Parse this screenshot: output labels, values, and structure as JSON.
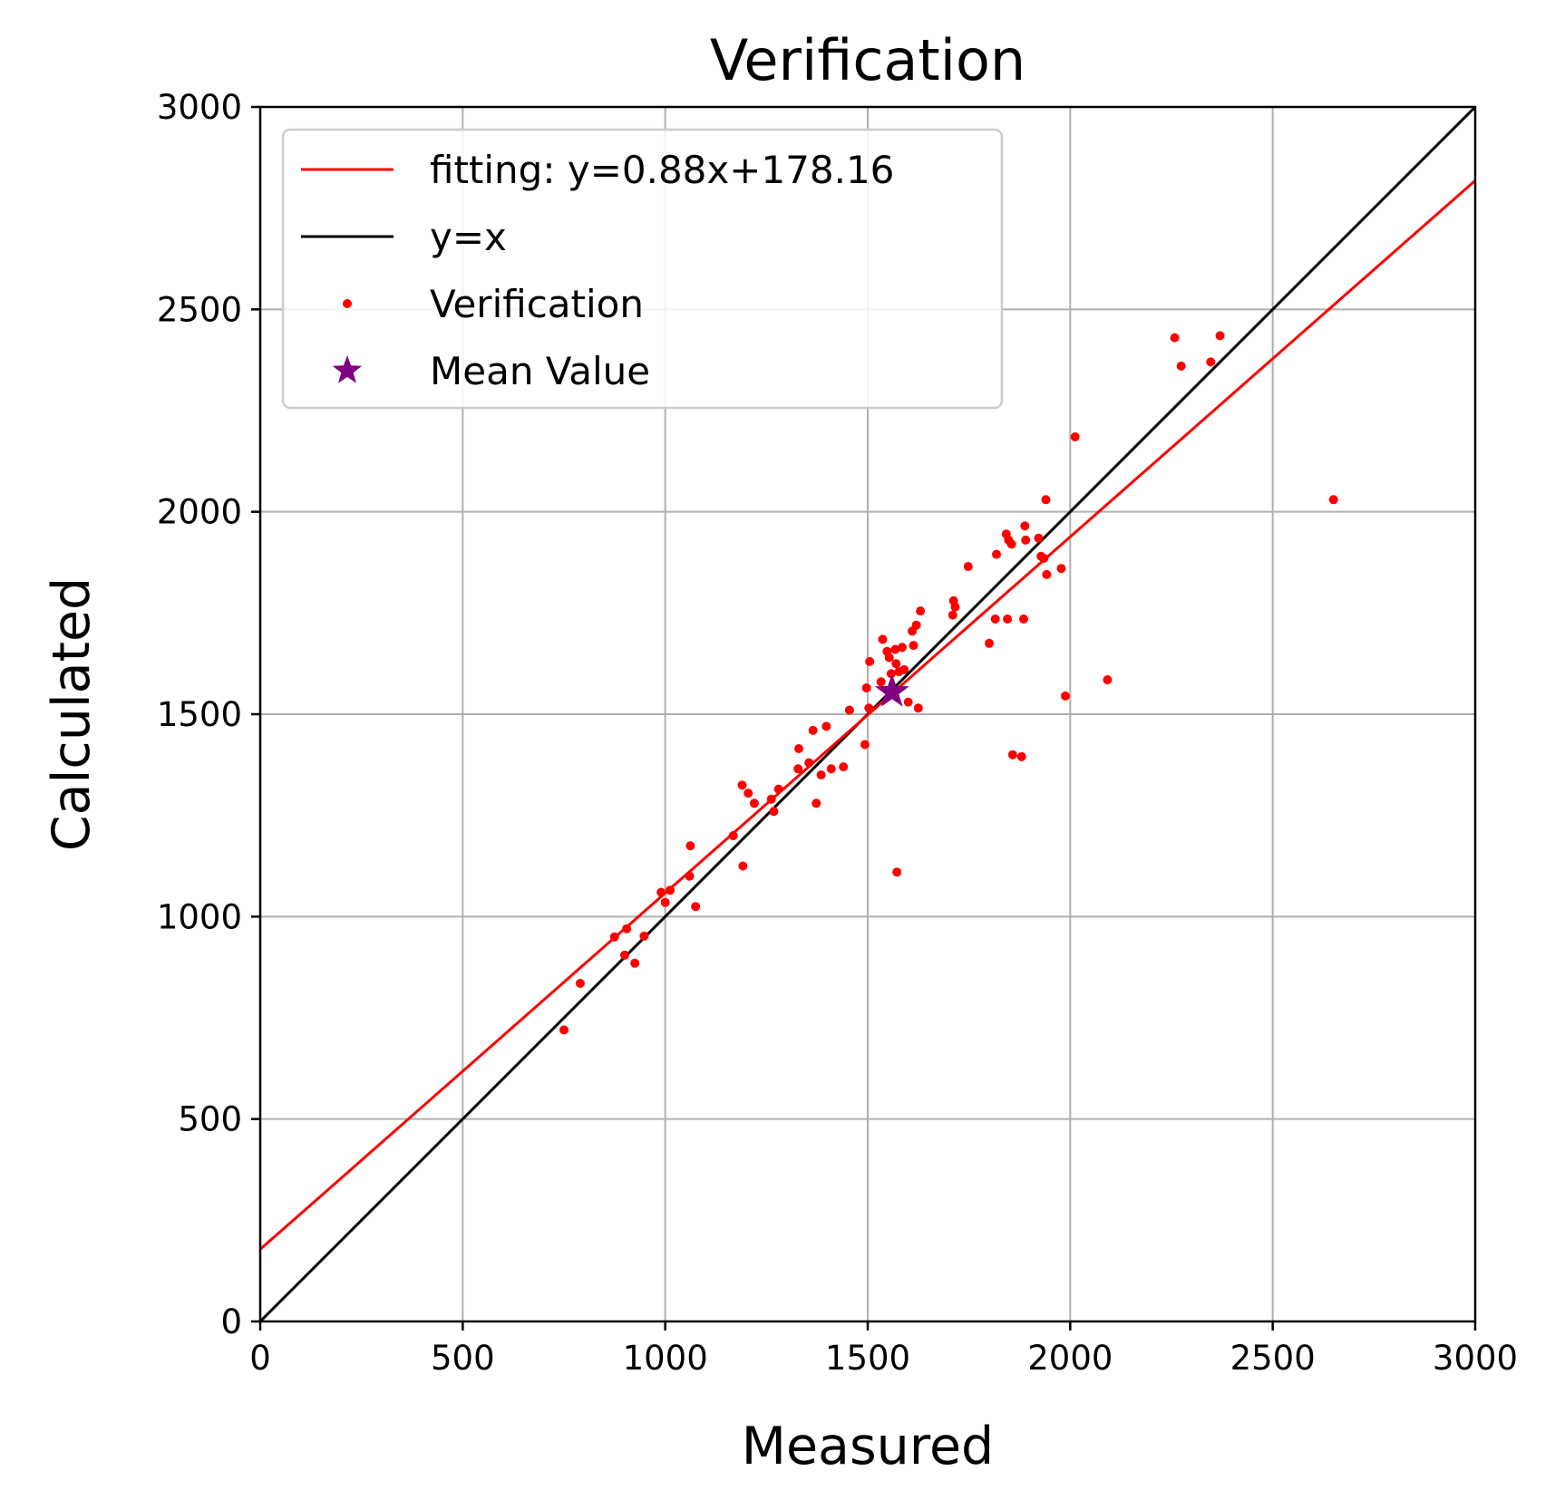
{
  "chart_data": {
    "type": "scatter",
    "title": "Verification",
    "xlabel": "Measured",
    "ylabel": "Calculated",
    "xlim": [
      0,
      3000
    ],
    "ylim": [
      0,
      3000
    ],
    "xticks": [
      "0",
      "500",
      "1000",
      "1500",
      "2000",
      "2500",
      "3000"
    ],
    "yticks": [
      "0",
      "500",
      "1000",
      "1500",
      "2000",
      "2500",
      "3000"
    ],
    "grid": true,
    "legend_position": "top-left",
    "colors": {
      "fit": "#ff0000",
      "identity": "#000000",
      "points": "#ff0000",
      "mean": "#800080"
    },
    "fit_line": {
      "name": "fitting: y=0.88x+178.16",
      "slope": 0.88,
      "intercept": 178.16
    },
    "identity_line": {
      "name": "y=x"
    },
    "series": [
      {
        "name": "Verification",
        "points": [
          [
            750,
            720
          ],
          [
            790,
            835
          ],
          [
            875,
            950
          ],
          [
            900,
            905
          ],
          [
            905,
            970
          ],
          [
            925,
            885
          ],
          [
            948,
            952
          ],
          [
            990,
            1060
          ],
          [
            1000,
            1035
          ],
          [
            1012,
            1065
          ],
          [
            1060,
            1100
          ],
          [
            1062,
            1175
          ],
          [
            1075,
            1025
          ],
          [
            1168,
            1200
          ],
          [
            1190,
            1325
          ],
          [
            1192,
            1125
          ],
          [
            1205,
            1305
          ],
          [
            1220,
            1280
          ],
          [
            1262,
            1290
          ],
          [
            1268,
            1260
          ],
          [
            1280,
            1315
          ],
          [
            1328,
            1365
          ],
          [
            1330,
            1415
          ],
          [
            1355,
            1380
          ],
          [
            1365,
            1460
          ],
          [
            1373,
            1280
          ],
          [
            1385,
            1350
          ],
          [
            1398,
            1470
          ],
          [
            1410,
            1365
          ],
          [
            1440,
            1370
          ],
          [
            1455,
            1510
          ],
          [
            1493,
            1425
          ],
          [
            1497,
            1565
          ],
          [
            1503,
            1515
          ],
          [
            1505,
            1630
          ],
          [
            1533,
            1580
          ],
          [
            1537,
            1685
          ],
          [
            1548,
            1655
          ],
          [
            1553,
            1640
          ],
          [
            1558,
            1600
          ],
          [
            1568,
            1660
          ],
          [
            1570,
            1625
          ],
          [
            1572,
            1110
          ],
          [
            1577,
            1605
          ],
          [
            1585,
            1665
          ],
          [
            1590,
            1610
          ],
          [
            1600,
            1530
          ],
          [
            1610,
            1705
          ],
          [
            1613,
            1670
          ],
          [
            1620,
            1720
          ],
          [
            1625,
            1515
          ],
          [
            1630,
            1755
          ],
          [
            1710,
            1745
          ],
          [
            1712,
            1780
          ],
          [
            1716,
            1765
          ],
          [
            1748,
            1865
          ],
          [
            1800,
            1675
          ],
          [
            1815,
            1735
          ],
          [
            1818,
            1895
          ],
          [
            1842,
            1945
          ],
          [
            1845,
            1735
          ],
          [
            1848,
            1930
          ],
          [
            1855,
            1920
          ],
          [
            1858,
            1400
          ],
          [
            1880,
            1395
          ],
          [
            1885,
            1735
          ],
          [
            1888,
            1965
          ],
          [
            1890,
            1930
          ],
          [
            1922,
            1935
          ],
          [
            1928,
            1890
          ],
          [
            1935,
            1885
          ],
          [
            1940,
            2030
          ],
          [
            1942,
            1845
          ],
          [
            1978,
            1860
          ],
          [
            1988,
            1545
          ],
          [
            2012,
            2185
          ],
          [
            2092,
            1585
          ],
          [
            2258,
            2430
          ],
          [
            2274,
            2360
          ],
          [
            2347,
            2370
          ],
          [
            2370,
            2435
          ],
          [
            2650,
            2030
          ]
        ]
      },
      {
        "name": "Mean Value",
        "points": [
          [
            1560,
            1555
          ]
        ]
      }
    ]
  }
}
